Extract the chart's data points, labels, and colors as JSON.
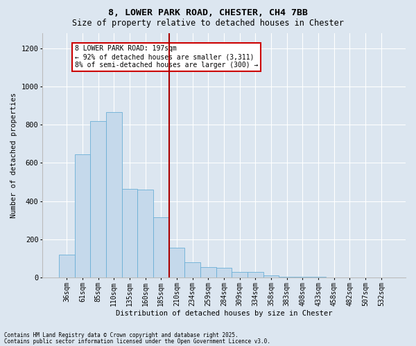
{
  "title_line1": "8, LOWER PARK ROAD, CHESTER, CH4 7BB",
  "title_line2": "Size of property relative to detached houses in Chester",
  "xlabel": "Distribution of detached houses by size in Chester",
  "ylabel": "Number of detached properties",
  "footnote1": "Contains HM Land Registry data © Crown copyright and database right 2025.",
  "footnote2": "Contains public sector information licensed under the Open Government Licence v3.0.",
  "bar_labels": [
    "36sqm",
    "61sqm",
    "85sqm",
    "110sqm",
    "135sqm",
    "160sqm",
    "185sqm",
    "210sqm",
    "234sqm",
    "259sqm",
    "284sqm",
    "309sqm",
    "334sqm",
    "358sqm",
    "383sqm",
    "408sqm",
    "433sqm",
    "458sqm",
    "482sqm",
    "507sqm",
    "532sqm"
  ],
  "bar_values": [
    120,
    645,
    820,
    865,
    465,
    460,
    315,
    155,
    80,
    55,
    50,
    30,
    30,
    10,
    5,
    5,
    3,
    2,
    2,
    1,
    1
  ],
  "bar_color": "#c5d9eb",
  "bar_edge_color": "#6aaed6",
  "background_color": "#dce6f0",
  "grid_color": "#ffffff",
  "vline_x": 7.0,
  "vline_color": "#aa0000",
  "annotation_title": "8 LOWER PARK ROAD: 197sqm",
  "annotation_line1": "← 92% of detached houses are smaller (3,311)",
  "annotation_line2": "8% of semi-detached houses are larger (300) →",
  "annotation_box_color": "#ffffff",
  "annotation_box_edge": "#cc0000",
  "ylim": [
    0,
    1280
  ],
  "yticks": [
    0,
    200,
    400,
    600,
    800,
    1000,
    1200
  ]
}
